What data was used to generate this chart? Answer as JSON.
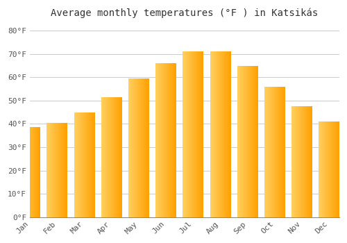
{
  "title": "Average monthly temperatures (°F ) in Katsikás",
  "months": [
    "Jan",
    "Feb",
    "Mar",
    "Apr",
    "May",
    "Jun",
    "Jul",
    "Aug",
    "Sep",
    "Oct",
    "Nov",
    "Dec"
  ],
  "values": [
    38.5,
    40.5,
    45.0,
    51.5,
    59.5,
    66.0,
    71.0,
    71.0,
    65.0,
    56.0,
    47.5,
    41.0
  ],
  "bar_color_left": "#FFD060",
  "bar_color_right": "#FFA000",
  "background_color": "#ffffff",
  "grid_color": "#cccccc",
  "ylim": [
    0,
    84
  ],
  "yticks": [
    0,
    10,
    20,
    30,
    40,
    50,
    60,
    70,
    80
  ],
  "title_fontsize": 10,
  "tick_fontsize": 8,
  "xlabel_rotation": 45,
  "bar_width": 0.75
}
